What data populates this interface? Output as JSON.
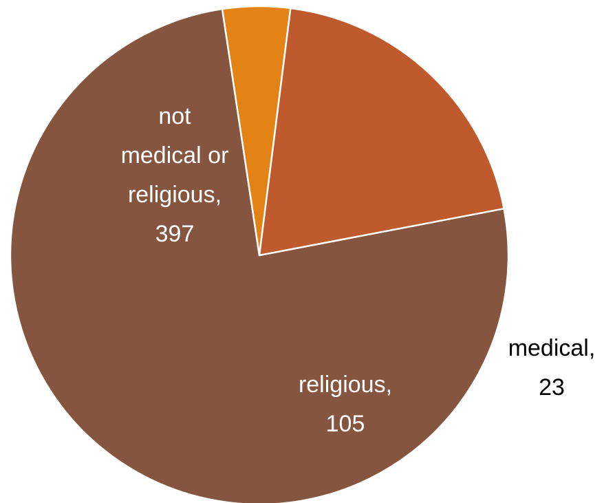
{
  "chart_data": {
    "type": "pie",
    "title": "",
    "slices": [
      {
        "label_lines": [
          "not",
          "medical or",
          "religious,",
          "397"
        ],
        "category": "not medical or religious",
        "value": 397,
        "color": "#86553F",
        "label_color": "#ffffff"
      },
      {
        "label_lines": [
          "medical,",
          "23"
        ],
        "category": "medical",
        "value": 23,
        "color": "#E38316",
        "label_color": "#000000"
      },
      {
        "label_lines": [
          "religious,",
          "105"
        ],
        "category": "religious",
        "value": 105,
        "color": "#BF5A2D",
        "label_color": "#ffffff"
      }
    ],
    "legend": "none"
  }
}
